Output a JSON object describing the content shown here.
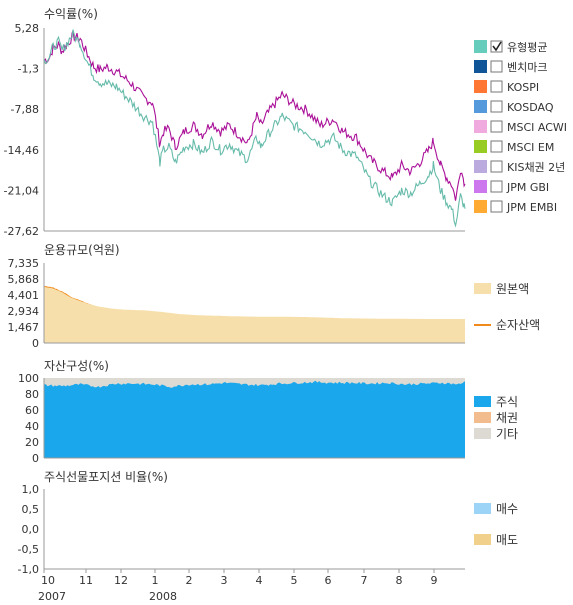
{
  "x_axis": {
    "month_labels": [
      "10",
      "11",
      "12",
      "1",
      "2",
      "3",
      "4",
      "5",
      "6",
      "7",
      "8",
      "9"
    ],
    "year_labels": [
      "2007",
      "2008"
    ]
  },
  "chart_data": [
    {
      "type": "line",
      "title": "수익률(%)",
      "y_ticks": [
        "5,28",
        "-1,3",
        "-7,88",
        "-14,46",
        "-21,04",
        "-27,62"
      ],
      "ylim": [
        -27.62,
        5.28
      ],
      "grid": false,
      "legend_position": "right",
      "legend": [
        {
          "label": "유형평균",
          "color": "#66ccbb",
          "checked": true
        },
        {
          "label": "벤치마크",
          "color": "#115599",
          "checked": false
        },
        {
          "label": "KOSPI",
          "color": "#ff7733",
          "checked": false
        },
        {
          "label": "KOSDAQ",
          "color": "#5599dd",
          "checked": false
        },
        {
          "label": "MSCI ACWI",
          "color": "#f0aadd",
          "checked": false
        },
        {
          "label": "MSCI EM",
          "color": "#99cc22",
          "checked": false
        },
        {
          "label": "KIS채권 2년",
          "color": "#bbaadd",
          "checked": false
        },
        {
          "label": "JPM GBI",
          "color": "#cc77ee",
          "checked": false
        },
        {
          "label": "JPM EMBI",
          "color": "#ffaa33",
          "checked": false
        }
      ],
      "series": [
        {
          "color": "#aa1199",
          "x": [
            0,
            6,
            10,
            16,
            20,
            25,
            32,
            40,
            48,
            55,
            62,
            70,
            80,
            95,
            110,
            120,
            128,
            132,
            138,
            145,
            155,
            165,
            175,
            185,
            195,
            205,
            215,
            225,
            235,
            240,
            245,
            255,
            263,
            275,
            290,
            305,
            320,
            330,
            345,
            360,
            375,
            385,
            395,
            405,
            415,
            425,
            430,
            438,
            445,
            450,
            455,
            460,
            464,
            465
          ],
          "values": [
            0.0,
            0.5,
            2.0,
            2.5,
            1.5,
            2.5,
            4.0,
            3.5,
            1.0,
            -1.0,
            -1.5,
            -1.0,
            -1.8,
            -3.5,
            -6.0,
            -6.8,
            -13.5,
            -11.5,
            -11.0,
            -14.0,
            -11.5,
            -10.5,
            -12.0,
            -10.0,
            -11.5,
            -10.5,
            -12.0,
            -13.5,
            -9.0,
            -10.5,
            -9.0,
            -7.0,
            -5.5,
            -7.0,
            -8.0,
            -10.5,
            -9.5,
            -11.5,
            -12.5,
            -16.0,
            -18.0,
            -19.0,
            -17.0,
            -18.0,
            -16.5,
            -14.5,
            -13.0,
            -17.0,
            -19.0,
            -20.0,
            -22.5,
            -17.5,
            -19.5,
            -20.0
          ]
        },
        {
          "color": "#66bbaa",
          "x": [
            0,
            6,
            10,
            16,
            20,
            25,
            32,
            40,
            48,
            55,
            62,
            70,
            80,
            95,
            110,
            120,
            128,
            132,
            138,
            145,
            155,
            165,
            175,
            185,
            195,
            205,
            215,
            225,
            235,
            240,
            245,
            255,
            263,
            275,
            290,
            305,
            320,
            330,
            345,
            360,
            375,
            385,
            395,
            405,
            415,
            425,
            430,
            438,
            445,
            450,
            455,
            460,
            464,
            465
          ],
          "values": [
            0.0,
            0.6,
            2.2,
            3.0,
            1.6,
            2.8,
            4.3,
            2.8,
            -0.3,
            -2.5,
            -3.5,
            -3.8,
            -4.2,
            -6.5,
            -9.0,
            -10.0,
            -16.5,
            -14.5,
            -14.0,
            -16.5,
            -14.0,
            -13.5,
            -15.0,
            -13.0,
            -14.5,
            -13.5,
            -15.0,
            -16.0,
            -12.5,
            -14.0,
            -12.5,
            -10.5,
            -9.0,
            -10.5,
            -11.5,
            -13.5,
            -12.5,
            -14.5,
            -15.5,
            -19.5,
            -22.0,
            -23.0,
            -21.0,
            -21.5,
            -20.0,
            -18.5,
            -17.0,
            -21.0,
            -23.0,
            -24.0,
            -26.5,
            -22.0,
            -23.5,
            -24.0
          ]
        }
      ]
    },
    {
      "type": "area",
      "title": "운용규모(억원)",
      "y_ticks": [
        "7,335",
        "5,868",
        "4,401",
        "2,934",
        "1,467",
        "0"
      ],
      "ylim": [
        0,
        7335
      ],
      "legend_position": "right",
      "legend": [
        {
          "label": "원본액",
          "color": "#f7dfab"
        },
        {
          "label": "순자산액",
          "color": "#f08a1c"
        }
      ],
      "series": [
        {
          "color": "#f7dfab",
          "x": [
            0,
            10,
            20,
            30,
            45,
            60,
            75,
            90,
            110,
            130,
            150,
            170,
            190,
            210,
            230,
            250,
            270,
            290,
            310,
            330,
            350,
            370,
            390,
            410,
            430,
            450,
            465
          ],
          "values": [
            5150,
            5000,
            4650,
            4150,
            3700,
            3350,
            3150,
            3050,
            3000,
            2850,
            2650,
            2550,
            2500,
            2450,
            2420,
            2400,
            2400,
            2380,
            2330,
            2270,
            2250,
            2230,
            2220,
            2210,
            2200,
            2200,
            2200
          ]
        },
        {
          "color": "#f08a1c",
          "x": [
            0,
            10,
            20,
            30,
            45,
            60,
            75,
            90,
            110,
            130,
            150,
            170,
            190,
            210,
            230,
            250,
            270,
            290,
            310,
            330,
            350,
            370,
            390,
            410,
            430,
            450,
            460,
            465
          ],
          "values": [
            5150,
            5000,
            4650,
            4150,
            3650,
            3200,
            2950,
            2850,
            2800,
            2500,
            2100,
            2050,
            2000,
            1980,
            1950,
            1980,
            1970,
            1900,
            1860,
            1700,
            1650,
            1600,
            1590,
            1600,
            1550,
            1520,
            1300,
            1420
          ]
        }
      ]
    },
    {
      "type": "area",
      "title": "자산구성(%)",
      "y_ticks": [
        "100",
        "80",
        "60",
        "40",
        "20",
        "0"
      ],
      "ylim": [
        0,
        100
      ],
      "legend_position": "right",
      "legend": [
        {
          "label": "주식",
          "color": "#1aa7ec"
        },
        {
          "label": "채권",
          "color": "#f3bc8f"
        },
        {
          "label": "기타",
          "color": "#dcdad3"
        }
      ],
      "series": [
        {
          "color": "#1aa7ec",
          "x": [
            0,
            20,
            40,
            60,
            80,
            100,
            120,
            140,
            160,
            180,
            200,
            220,
            240,
            260,
            280,
            300,
            320,
            340,
            360,
            380,
            400,
            420,
            440,
            460,
            465
          ],
          "values": [
            91,
            90,
            92,
            89,
            93,
            93,
            92,
            89,
            92,
            92,
            94,
            92,
            91,
            93,
            94,
            95,
            94,
            94,
            93,
            94,
            92,
            93,
            94,
            92,
            96
          ]
        },
        {
          "color": "#f3bc8f",
          "x": [
            0,
            465
          ],
          "values": [
            0.5,
            0.5
          ]
        },
        {
          "color": "#dcdad3",
          "x": [
            0,
            465
          ],
          "values": [
            100,
            100
          ]
        }
      ]
    },
    {
      "type": "line",
      "title": "주식선물포지션 비율(%)",
      "y_ticks": [
        "1,0",
        "0,5",
        "0,0",
        "-0,5",
        "-1,0"
      ],
      "ylim": [
        -1,
        1
      ],
      "legend_position": "right",
      "legend": [
        {
          "label": "매수",
          "color": "#9cd4f7"
        },
        {
          "label": "매도",
          "color": "#f0d08a"
        }
      ],
      "series": []
    }
  ]
}
